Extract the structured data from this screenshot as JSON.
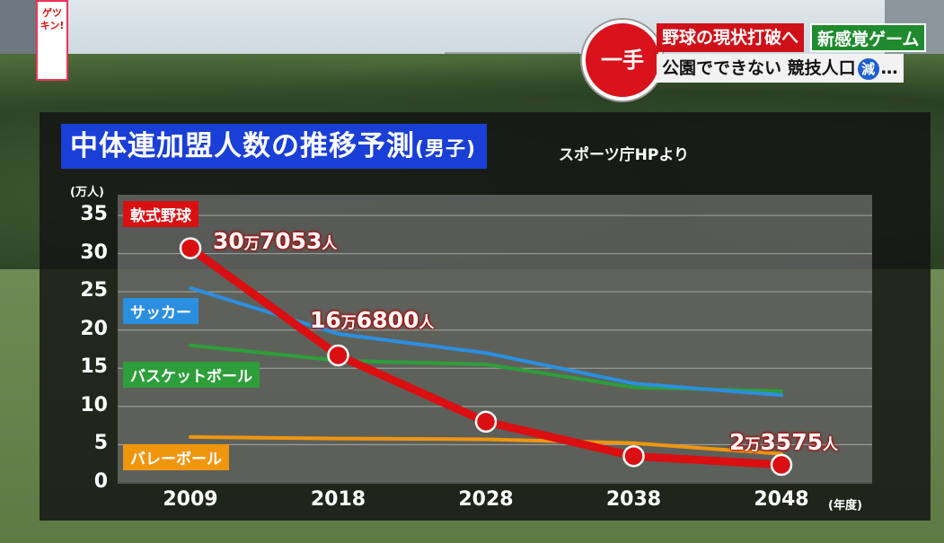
{
  "banner": {
    "circle_text": "一手",
    "line1": "野球の現状打破へ",
    "tag": "新感覚ゲーム",
    "line2_a": "公園でできない 競技人口",
    "line2_badge": "減",
    "line2_b": "…"
  },
  "logo": {
    "text": "ゲツキン!"
  },
  "chart_title_main": "中体連加盟人数の推移予測",
  "chart_title_sub": "(男子)",
  "source": "スポーツ庁HPより",
  "colors": {
    "baseball": "#d90f12",
    "soccer": "#2b8fe0",
    "basketball": "#2e9e3a",
    "volleyball": "#f0960e",
    "title_bg": "#1a3fd6"
  },
  "chart_data": {
    "type": "line",
    "title": "中体連加盟人数の推移予測(男子)",
    "ylabel": "(万人)",
    "xlabel": "(年度)",
    "x": [
      "2009",
      "2018",
      "2028",
      "2038",
      "2048"
    ],
    "yticks": [
      "35",
      "30",
      "25",
      "20",
      "15",
      "10",
      "5",
      "0"
    ],
    "ylim": [
      0,
      35
    ],
    "grid": true,
    "series": [
      {
        "name": "軟式野球",
        "values": [
          30.7053,
          16.68,
          8.0,
          3.5,
          2.3575
        ]
      },
      {
        "name": "サッカー",
        "values": [
          25.5,
          19.5,
          17.0,
          13.0,
          11.5
        ]
      },
      {
        "name": "バスケットボール",
        "values": [
          18.0,
          16.0,
          15.5,
          12.5,
          12.0
        ]
      },
      {
        "name": "バレーボール",
        "values": [
          6.0,
          5.8,
          5.7,
          5.2,
          3.8
        ]
      }
    ],
    "annotations": [
      {
        "main": "30",
        "unit": "万",
        "rest": "7053",
        "suffix": "人"
      },
      {
        "main": "16",
        "unit": "万",
        "rest": "6800",
        "suffix": "人"
      },
      {
        "main": "2",
        "unit": "万",
        "rest": "3575",
        "suffix": "人"
      }
    ]
  }
}
